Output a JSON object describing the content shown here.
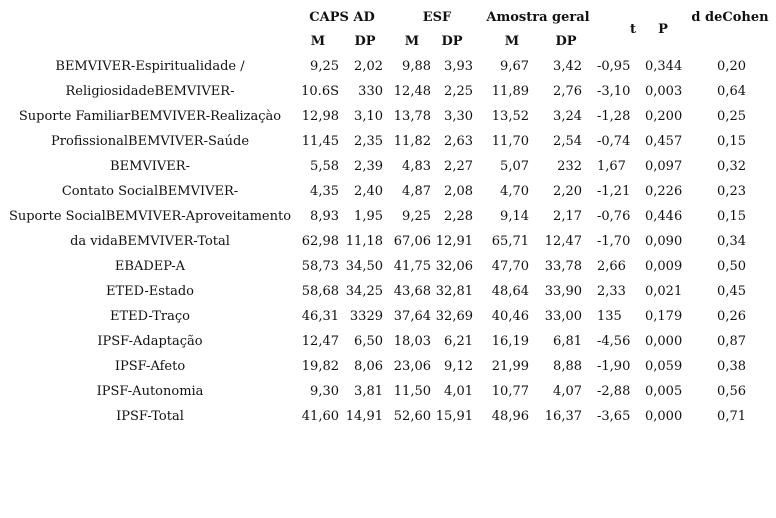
{
  "table": {
    "groups": [
      "CAPS AD",
      "ESF",
      "Amostra geral"
    ],
    "extra_headers": [
      "t",
      "P",
      "d deCohen"
    ],
    "subheaders": [
      "M",
      "DP",
      "M",
      "DP",
      "M",
      "DP"
    ],
    "rows": [
      [
        "BEMVIVER-Espiritualidade /",
        "9,25",
        "2,02",
        "9,88",
        "3,93",
        "9,67",
        "3,42",
        "-0,95",
        "0,344",
        "0,20"
      ],
      [
        "ReligiosidadeBEMVIVER-",
        "10.6S",
        "330",
        "12,48",
        "2,25",
        "11,89",
        "2,76",
        "-3,10",
        "0,003",
        "0,64"
      ],
      [
        "Suporte FamiliarBEMVIVER-Realizaçào",
        "12,98",
        "3,10",
        "13,78",
        "3,30",
        "13,52",
        "3,24",
        "-1,28",
        "0,200",
        "0,25"
      ],
      [
        "ProfissionalBEMVIVER-Saúde",
        "11,45",
        "2,35",
        "11,82",
        "2,63",
        "11,70",
        "2,54",
        "-0,74",
        "0,457",
        "0,15"
      ],
      [
        "BEMVIVER-",
        "5,58",
        "2,39",
        "4,83",
        "2,27",
        "5,07",
        "232",
        "1,67",
        "0,097",
        "0,32"
      ],
      [
        "Contato SocialBEMVIVER-",
        "4,35",
        "2,40",
        "4,87",
        "2,08",
        "4,70",
        "2,20",
        "-1,21",
        "0,226",
        "0,23"
      ],
      [
        "Suporte SocialBEMVIVER-Aproveitamento",
        "8,93",
        "1,95",
        "9,25",
        "2,28",
        "9,14",
        "2,17",
        "-0,76",
        "0,446",
        "0,15"
      ],
      [
        "da vidaBEMVIVER-Total",
        "62,98",
        "11,18",
        "67,06",
        "12,91",
        "65,71",
        "12,47",
        "-1,70",
        "0,090",
        "0,34"
      ],
      [
        "EBADEP-A",
        "58,73",
        "34,50",
        "41,75",
        "32,06",
        "47,70",
        "33,78",
        "2,66",
        "0,009",
        "0,50"
      ],
      [
        "ETED-Estado",
        "58,68",
        "34,25",
        "43,68",
        "32,81",
        "48,64",
        "33,90",
        "2,33",
        "0,021",
        "0,45"
      ],
      [
        "ETED-Traço",
        "46,31",
        "3329",
        "37,64",
        "32,69",
        "40,46",
        "33,00",
        "135",
        "0,179",
        "0,26"
      ],
      [
        "IPSF-Adaptação",
        "12,47",
        "6,50",
        "18,03",
        "6,21",
        "16,19",
        "6,81",
        "-4,56",
        "0,000",
        "0,87"
      ],
      [
        "IPSF-Afeto",
        "19,82",
        "8,06",
        "23,06",
        "9,12",
        "21,99",
        "8,88",
        "-1,90",
        "0,059",
        "0,38"
      ],
      [
        "IPSF-Autonomia",
        "9,30",
        "3,81",
        "11,50",
        "4,01",
        "10,77",
        "4,07",
        "-2,88",
        "0,005",
        "0,56"
      ],
      [
        "IPSF-Total",
        "41,60",
        "14,91",
        "52,60",
        "15,91",
        "48,96",
        "16,37",
        "-3,65",
        "0,000",
        "0,71"
      ]
    ]
  }
}
